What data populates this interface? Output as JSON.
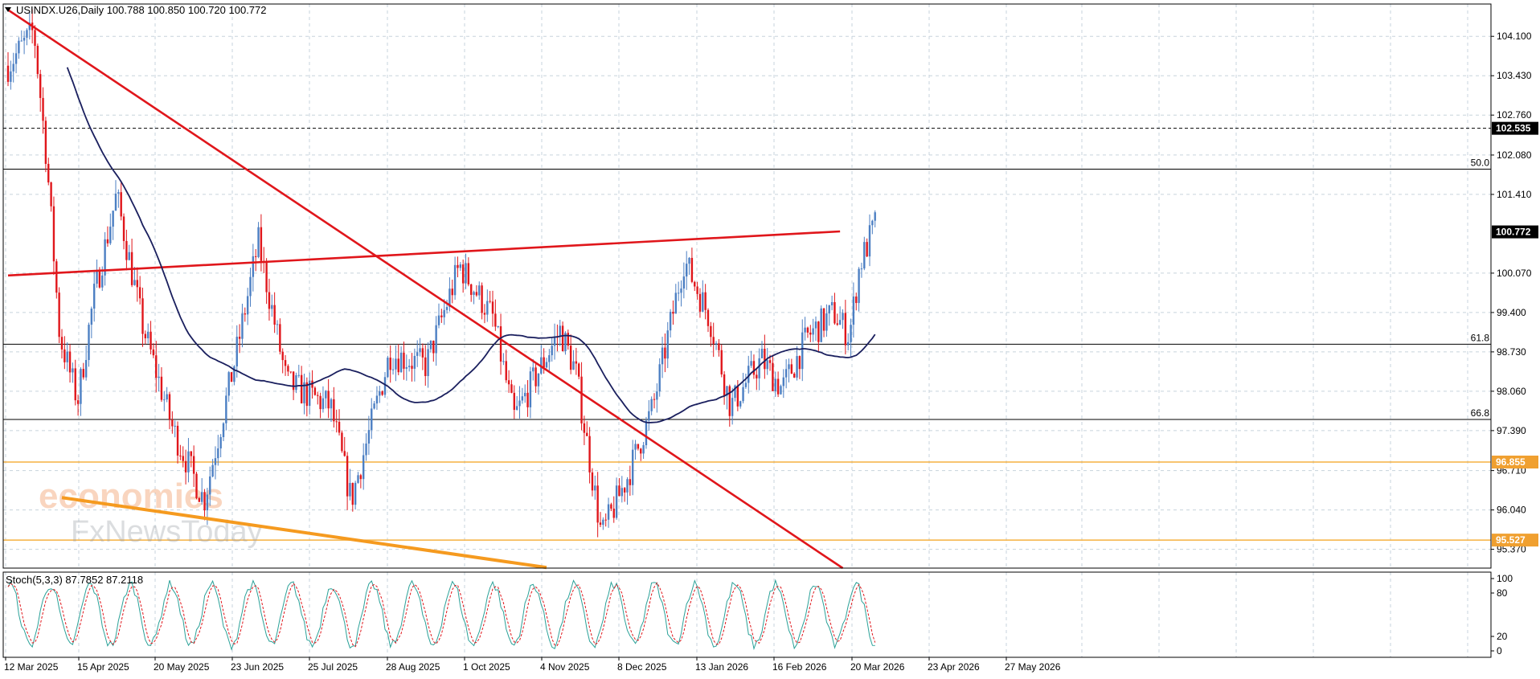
{
  "chart_data": {
    "type": "candlestick",
    "symbol_line": "USINDX.U26,Daily  100.788 100.850 100.720 100.772",
    "price_axis": {
      "ticks": [
        "104.100",
        "103.430",
        "102.760",
        "102.080",
        "101.410",
        "100.070",
        "99.400",
        "98.730",
        "98.060",
        "97.390",
        "96.710",
        "96.040",
        "95.370"
      ],
      "range": [
        95.05,
        104.65
      ]
    },
    "date_axis": [
      "12 Mar 2025",
      "15 Apr 2025",
      "20 May 2025",
      "23 Jun 2025",
      "25 Jul 2025",
      "28 Aug 2025",
      "1 Oct 2025",
      "4 Nov 2025",
      "8 Dec 2025",
      "13 Jan 2026",
      "16 Feb 2026",
      "20 Mar 2026",
      "23 Apr 2026",
      "27 May 2026"
    ],
    "price_labels": [
      {
        "text": "102.535",
        "value": 102.535,
        "bg": "#000000",
        "fg": "#ffffff",
        "line": "dashed"
      },
      {
        "text": "100.772",
        "value": 100.772,
        "bg": "#000000",
        "fg": "#ffffff",
        "line": "none"
      },
      {
        "text": "96.855",
        "value": 96.855,
        "bg": "#f0a030",
        "fg": "#ffffff",
        "line": "orange"
      },
      {
        "text": "95.527",
        "value": 95.527,
        "bg": "#f0a030",
        "fg": "#ffffff",
        "line": "orange"
      }
    ],
    "fib_levels": [
      {
        "label": "50.0",
        "value": 101.84
      },
      {
        "label": "61.8",
        "value": 98.86
      },
      {
        "label": "66.8",
        "value": 97.58
      }
    ],
    "trendlines": [
      {
        "name": "resistance",
        "color": "#e0161b",
        "from": [
          0,
          100.03
        ],
        "to": [
          309,
          100.78
        ]
      },
      {
        "name": "descending",
        "color": "#e0161b",
        "from": [
          0,
          104.55
        ],
        "to": [
          310,
          95.05
        ]
      },
      {
        "name": "support",
        "color": "#f59a1f",
        "from": [
          20,
          96.25
        ],
        "to": [
          200,
          95.06
        ]
      }
    ],
    "moving_average_color": "#1a1f5e",
    "candle_up_color": "#4c7fc3",
    "candle_down_color": "#e0161b",
    "stochastic": {
      "label": "Stoch(5,3,3) 87.7852 87.2118",
      "ticks": [
        "100",
        "80",
        "20",
        "0"
      ],
      "k_color": "#2aa198",
      "d_color": "#e0161b"
    },
    "watermark": {
      "line1": "economies",
      "line2": "FxNewsToday"
    }
  }
}
